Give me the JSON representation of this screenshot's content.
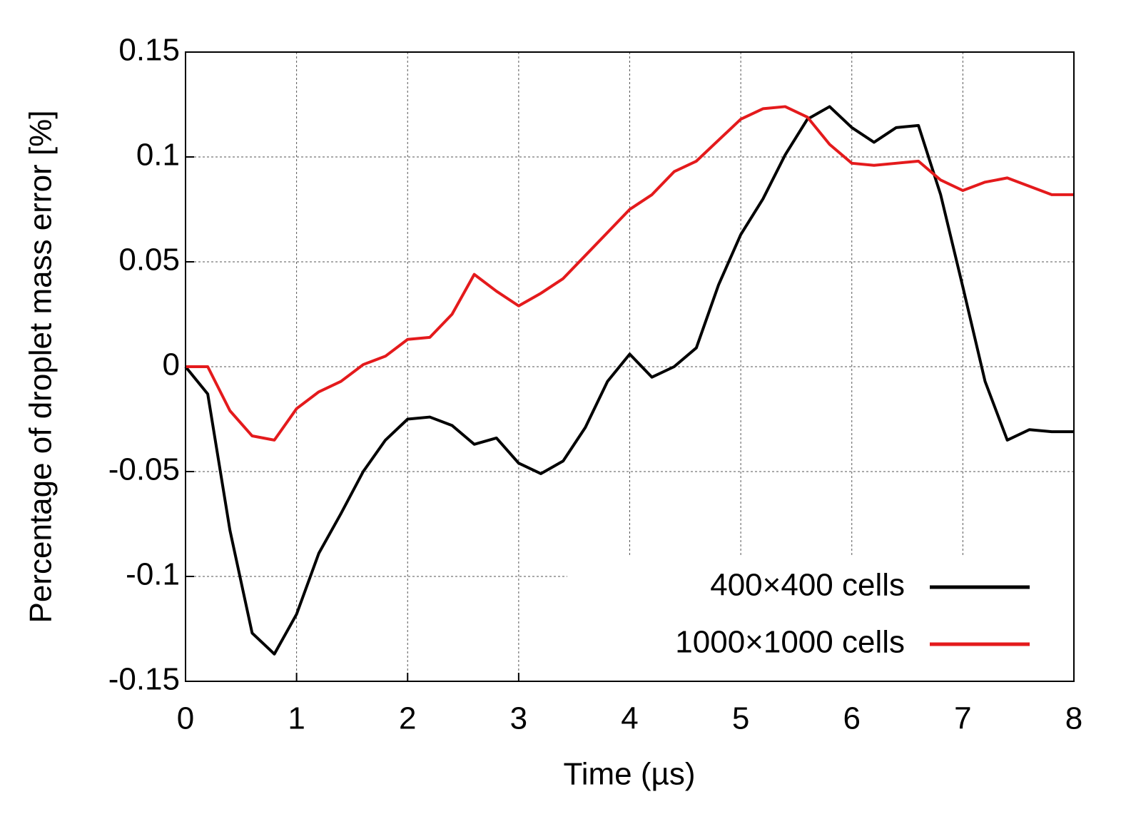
{
  "chart_data": {
    "type": "line",
    "x_label": "Time (µs)",
    "y_label": "Percentage of droplet mass error [%]",
    "x": [
      0,
      0.2,
      0.4,
      0.6,
      0.8,
      1.0,
      1.2,
      1.4,
      1.6,
      1.8,
      2.0,
      2.2,
      2.4,
      2.6,
      2.8,
      3.0,
      3.2,
      3.4,
      3.6,
      3.8,
      4.0,
      4.2,
      4.4,
      4.6,
      4.8,
      5.0,
      5.2,
      5.4,
      5.6,
      5.8,
      6.0,
      6.2,
      6.4,
      6.6,
      6.8,
      7.0,
      7.2,
      7.4,
      7.6,
      7.8,
      8.0
    ],
    "series": [
      {
        "name": "400×400 cells",
        "color": "#000000",
        "values": [
          0,
          -0.013,
          -0.078,
          -0.127,
          -0.137,
          -0.118,
          -0.089,
          -0.07,
          -0.05,
          -0.035,
          -0.025,
          -0.024,
          -0.028,
          -0.037,
          -0.034,
          -0.046,
          -0.051,
          -0.045,
          -0.029,
          -0.007,
          0.006,
          -0.005,
          0.0,
          0.009,
          0.039,
          0.063,
          0.08,
          0.101,
          0.118,
          0.124,
          0.114,
          0.107,
          0.114,
          0.115,
          0.082,
          0.038,
          -0.007,
          -0.035,
          -0.03,
          -0.031,
          -0.031
        ]
      },
      {
        "name": "1000×1000 cells",
        "color": "#e41a1c",
        "values": [
          0,
          0,
          -0.021,
          -0.033,
          -0.035,
          -0.02,
          -0.012,
          -0.007,
          0.001,
          0.005,
          0.013,
          0.014,
          0.025,
          0.044,
          0.036,
          0.029,
          0.035,
          0.042,
          0.053,
          0.064,
          0.075,
          0.082,
          0.093,
          0.098,
          0.108,
          0.118,
          0.123,
          0.124,
          0.119,
          0.106,
          0.097,
          0.096,
          0.097,
          0.098,
          0.089,
          0.084,
          0.088,
          0.09,
          0.086,
          0.082,
          0.082
        ]
      }
    ],
    "xlim": [
      0,
      8
    ],
    "xticks": [
      0,
      1,
      2,
      3,
      4,
      5,
      6,
      7,
      8
    ],
    "ylim": [
      -0.15,
      0.15
    ],
    "yticks": [
      -0.15,
      -0.1,
      -0.05,
      0,
      0.05,
      0.1,
      0.15
    ],
    "grid": true,
    "legend": "lower-right"
  }
}
